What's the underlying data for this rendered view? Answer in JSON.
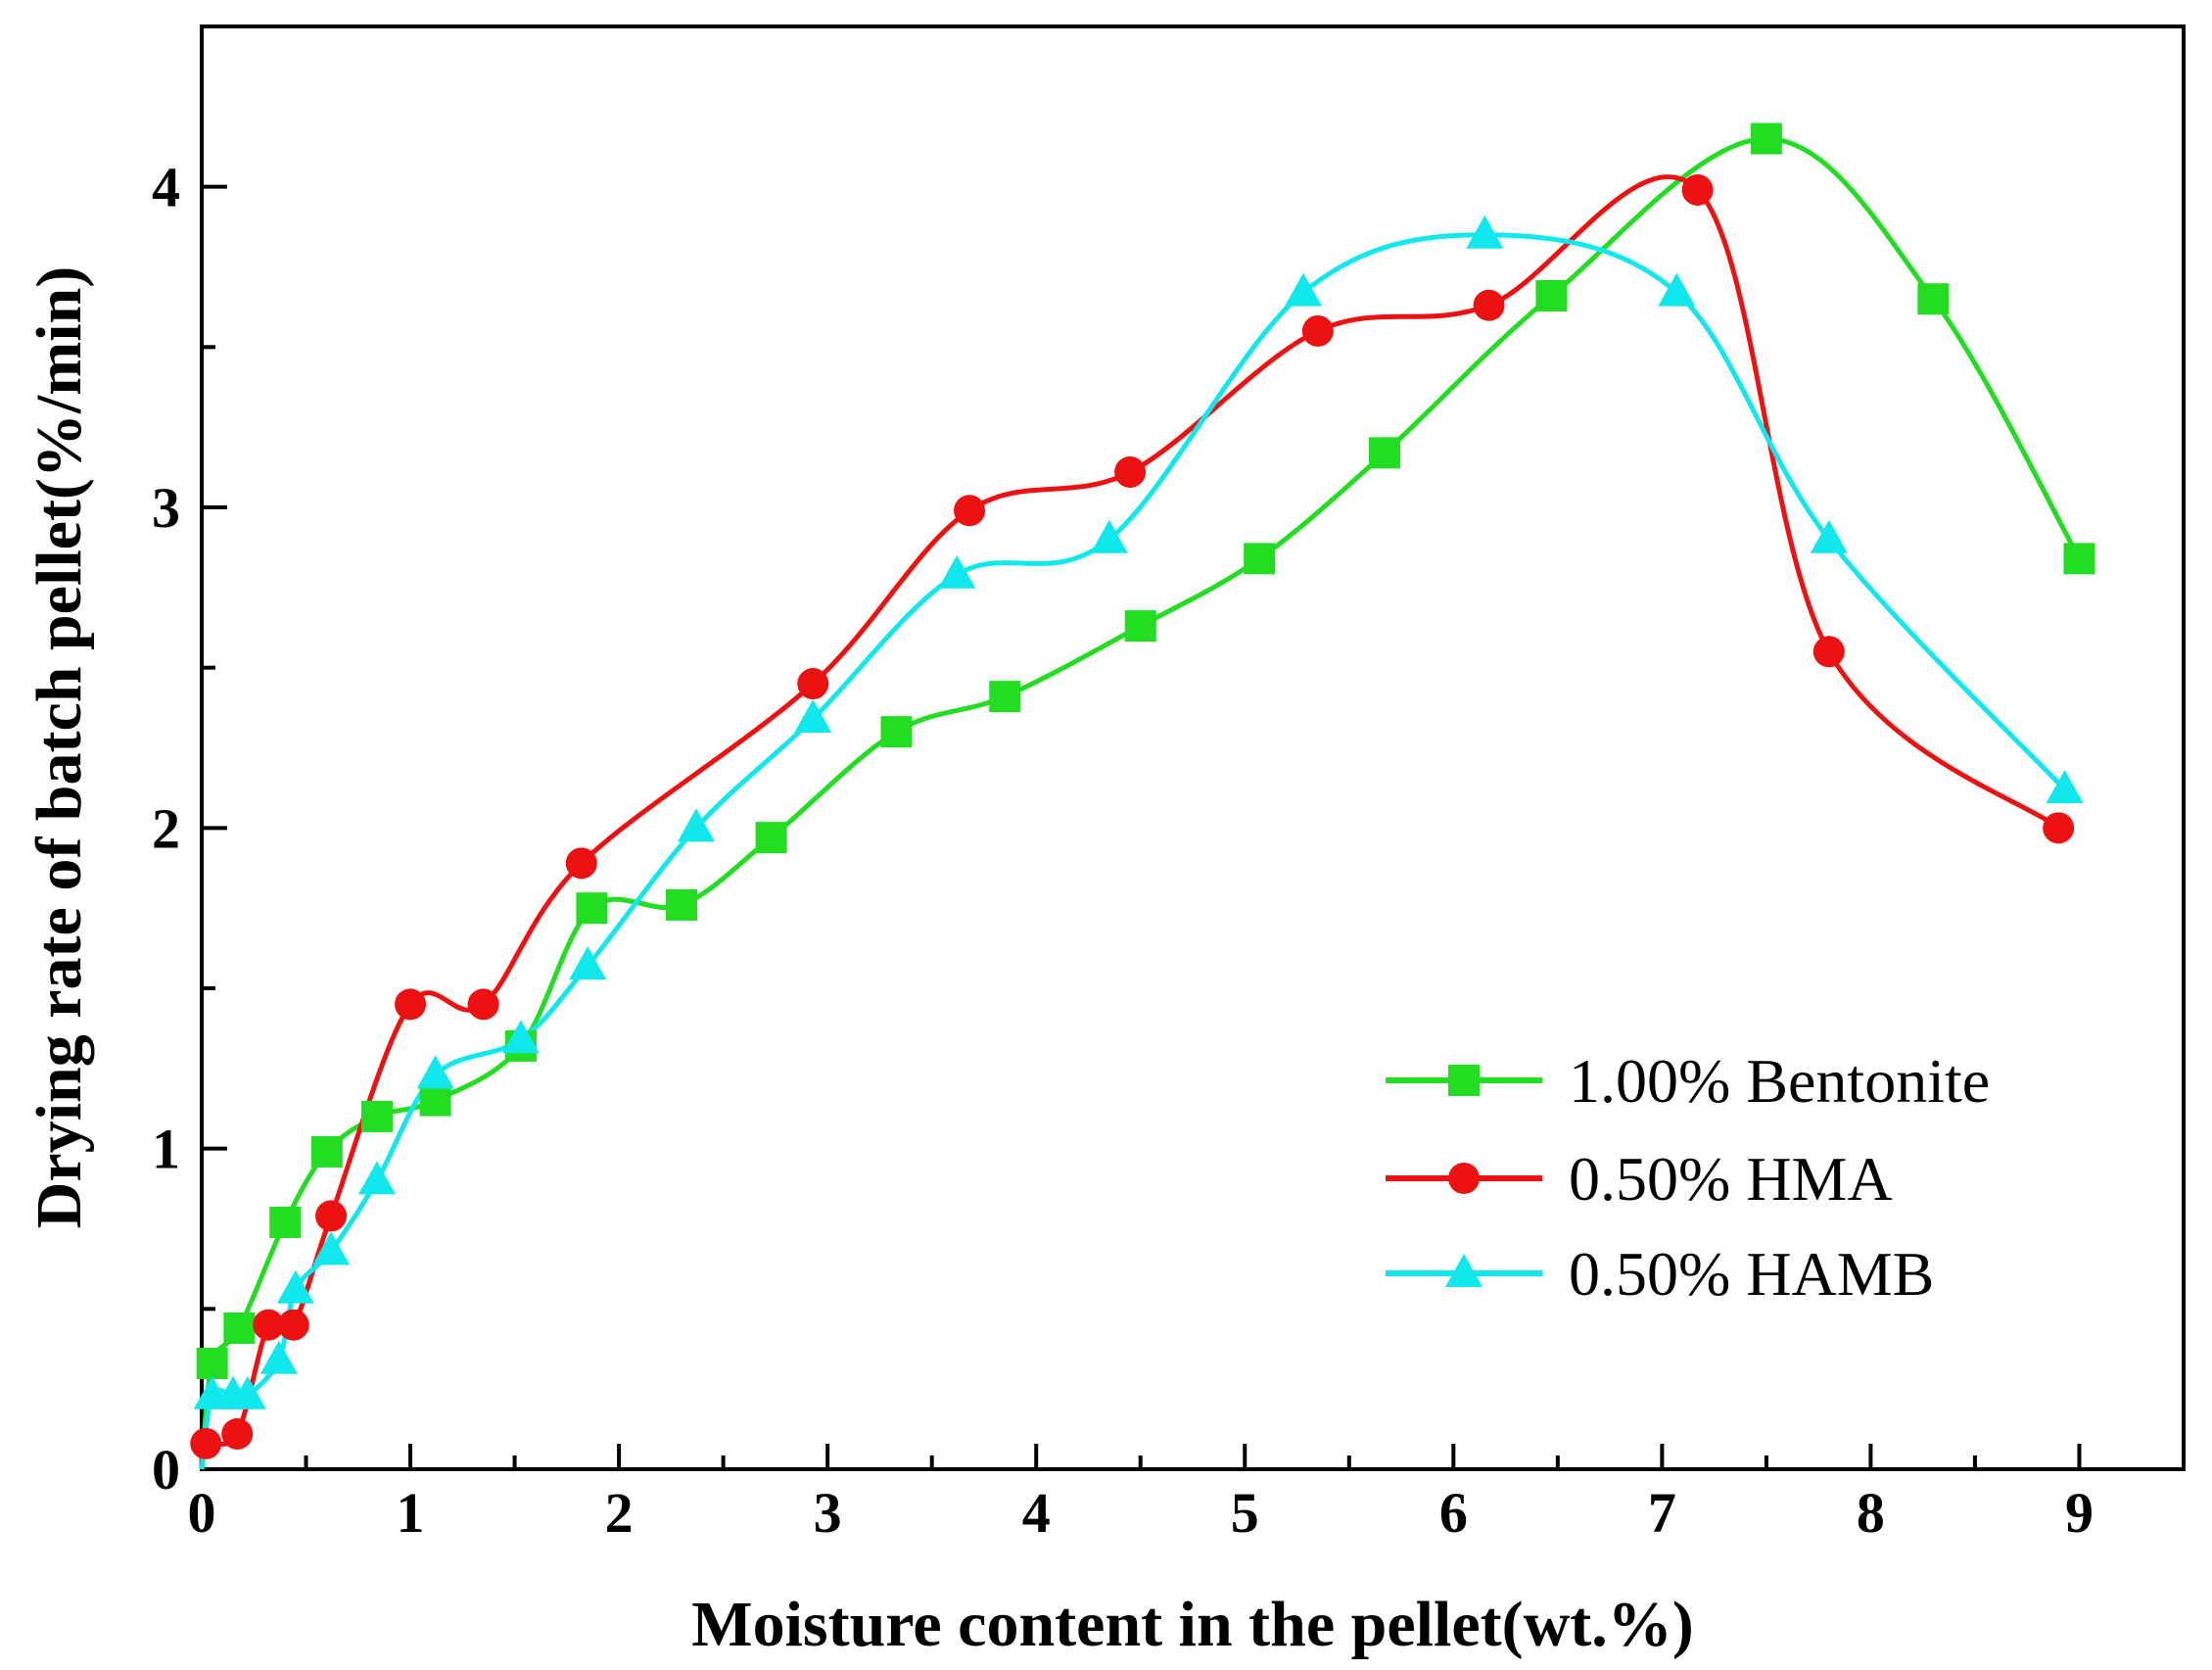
{
  "chart_data": {
    "type": "line",
    "title": "",
    "xlabel": "Moisture content in the pellet(wt.%)",
    "ylabel": "Drying rate of batch pellet(%/min)",
    "xlim": [
      0,
      9.5
    ],
    "ylim": [
      0,
      4.5
    ],
    "xticks": [
      0,
      1,
      2,
      3,
      4,
      5,
      6,
      7,
      8,
      9
    ],
    "yticks": [
      0,
      1,
      2,
      3,
      4
    ],
    "xtick_labels": [
      "0",
      "1",
      "2",
      "3",
      "4",
      "5",
      "6",
      "7",
      "8",
      "9"
    ],
    "ytick_labels": [
      "0",
      "1",
      "2",
      "3",
      "4"
    ],
    "legend_position": "bottom-right",
    "series": [
      {
        "name": "1.00% Bentonite",
        "color": "#22dd22",
        "marker": "square",
        "x": [
          0.05,
          0.18,
          0.4,
          0.6,
          0.84,
          1.12,
          1.53,
          1.87,
          2.3,
          2.73,
          3.33,
          3.85,
          4.5,
          5.07,
          5.67,
          6.47,
          7.5,
          8.3,
          9.0
        ],
        "y": [
          0.33,
          0.44,
          0.77,
          0.99,
          1.1,
          1.15,
          1.32,
          1.75,
          1.76,
          1.97,
          2.3,
          2.41,
          2.63,
          2.84,
          3.17,
          3.66,
          4.15,
          3.65,
          2.84
        ]
      },
      {
        "name": "0.50% HMA",
        "color": "#ee1111",
        "marker": "circle",
        "x": [
          0.02,
          0.17,
          0.32,
          0.44,
          0.62,
          1.0,
          1.35,
          1.82,
          2.93,
          3.68,
          4.45,
          5.35,
          6.17,
          7.17,
          7.8,
          8.9
        ],
        "y": [
          0.08,
          0.11,
          0.45,
          0.45,
          0.79,
          1.45,
          1.45,
          1.89,
          2.45,
          2.99,
          3.11,
          3.55,
          3.63,
          3.99,
          2.55,
          2.0
        ]
      },
      {
        "name": "0.50% HAMB",
        "color": "#11e8ee",
        "marker": "triangle",
        "x": [
          0.05,
          0.15,
          0.22,
          0.37,
          0.45,
          0.62,
          0.84,
          1.12,
          1.53,
          1.85,
          2.37,
          2.93,
          3.62,
          4.35,
          5.28,
          6.15,
          7.07,
          7.8,
          8.93
        ],
        "y": [
          0.23,
          0.23,
          0.23,
          0.34,
          0.56,
          0.68,
          0.9,
          1.23,
          1.34,
          1.57,
          2.0,
          2.34,
          2.79,
          2.9,
          3.67,
          3.85,
          3.67,
          2.9,
          2.12
        ]
      }
    ]
  }
}
